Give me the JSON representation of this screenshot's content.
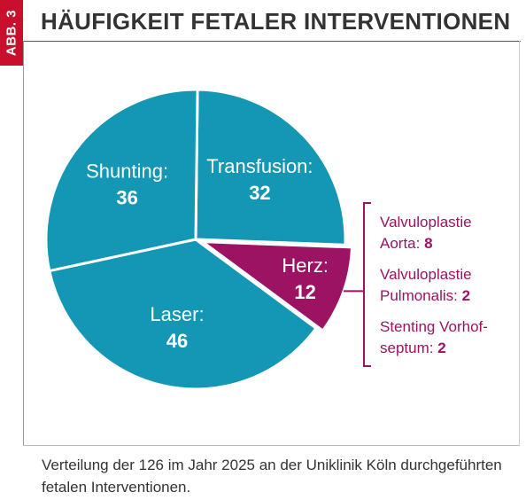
{
  "figure": {
    "tag": "ABB. 3",
    "title": "HÄUFIGKEIT FETALER INTERVENTIONEN",
    "caption": "Verteilung der 126 im Jahr 2025 an der Uniklinik Köln durchgeführten fetalen Interventionen."
  },
  "colors": {
    "teal": "#1497b5",
    "magenta": "#9b1362",
    "tag_red": "#c8102e"
  },
  "chart_data": {
    "type": "pie",
    "total": 126,
    "slices": [
      {
        "label": "Transfusion:",
        "value": 32,
        "color": "#1497b5"
      },
      {
        "label": "Herz:",
        "value": 12,
        "color": "#9b1362"
      },
      {
        "label": "Laser:",
        "value": 46,
        "color": "#1497b5"
      },
      {
        "label": "Shunting:",
        "value": 36,
        "color": "#1497b5"
      }
    ],
    "herz_breakdown": [
      {
        "line1": "Valvuloplastie",
        "line2": "Aorta:",
        "value": "8"
      },
      {
        "line1": "Valvuloplastie",
        "line2": "Pulmonalis:",
        "value": "2"
      },
      {
        "line1": "Stenting Vorhof-",
        "line2": "septum:",
        "value": "2"
      }
    ]
  }
}
